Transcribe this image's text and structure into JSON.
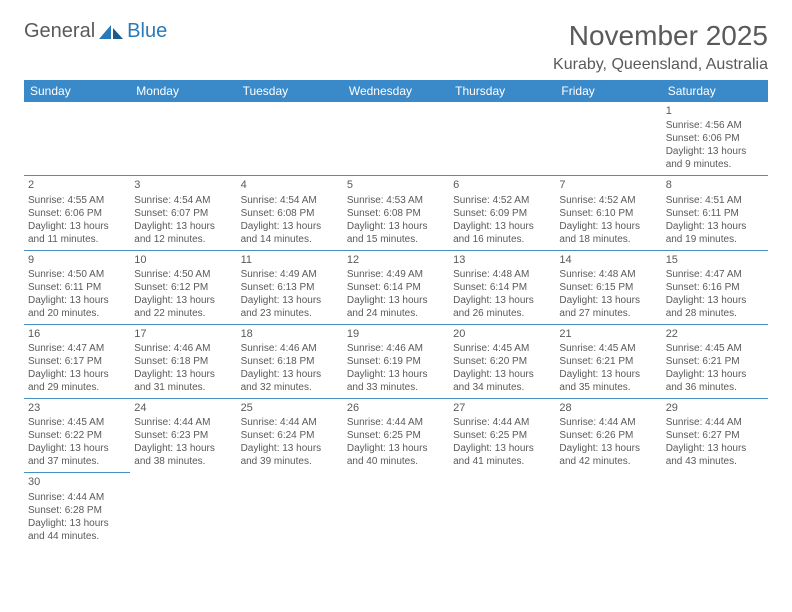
{
  "logo": {
    "text1": "General",
    "text2": "Blue"
  },
  "title": "November 2025",
  "location": "Kuraby, Queensland, Australia",
  "colors": {
    "header_bg": "#3a89c9",
    "header_text": "#ffffff",
    "cell_border": "#4a8fc4",
    "text": "#5a5a5a",
    "logo_blue": "#2a7ab9"
  },
  "weekdays": [
    "Sunday",
    "Monday",
    "Tuesday",
    "Wednesday",
    "Thursday",
    "Friday",
    "Saturday"
  ],
  "cells": [
    {
      "day": "",
      "sunrise": "",
      "sunset": "",
      "daylight": ""
    },
    {
      "day": "",
      "sunrise": "",
      "sunset": "",
      "daylight": ""
    },
    {
      "day": "",
      "sunrise": "",
      "sunset": "",
      "daylight": ""
    },
    {
      "day": "",
      "sunrise": "",
      "sunset": "",
      "daylight": ""
    },
    {
      "day": "",
      "sunrise": "",
      "sunset": "",
      "daylight": ""
    },
    {
      "day": "",
      "sunrise": "",
      "sunset": "",
      "daylight": ""
    },
    {
      "day": "1",
      "sunrise": "Sunrise: 4:56 AM",
      "sunset": "Sunset: 6:06 PM",
      "daylight": "Daylight: 13 hours and 9 minutes."
    },
    {
      "day": "2",
      "sunrise": "Sunrise: 4:55 AM",
      "sunset": "Sunset: 6:06 PM",
      "daylight": "Daylight: 13 hours and 11 minutes."
    },
    {
      "day": "3",
      "sunrise": "Sunrise: 4:54 AM",
      "sunset": "Sunset: 6:07 PM",
      "daylight": "Daylight: 13 hours and 12 minutes."
    },
    {
      "day": "4",
      "sunrise": "Sunrise: 4:54 AM",
      "sunset": "Sunset: 6:08 PM",
      "daylight": "Daylight: 13 hours and 14 minutes."
    },
    {
      "day": "5",
      "sunrise": "Sunrise: 4:53 AM",
      "sunset": "Sunset: 6:08 PM",
      "daylight": "Daylight: 13 hours and 15 minutes."
    },
    {
      "day": "6",
      "sunrise": "Sunrise: 4:52 AM",
      "sunset": "Sunset: 6:09 PM",
      "daylight": "Daylight: 13 hours and 16 minutes."
    },
    {
      "day": "7",
      "sunrise": "Sunrise: 4:52 AM",
      "sunset": "Sunset: 6:10 PM",
      "daylight": "Daylight: 13 hours and 18 minutes."
    },
    {
      "day": "8",
      "sunrise": "Sunrise: 4:51 AM",
      "sunset": "Sunset: 6:11 PM",
      "daylight": "Daylight: 13 hours and 19 minutes."
    },
    {
      "day": "9",
      "sunrise": "Sunrise: 4:50 AM",
      "sunset": "Sunset: 6:11 PM",
      "daylight": "Daylight: 13 hours and 20 minutes."
    },
    {
      "day": "10",
      "sunrise": "Sunrise: 4:50 AM",
      "sunset": "Sunset: 6:12 PM",
      "daylight": "Daylight: 13 hours and 22 minutes."
    },
    {
      "day": "11",
      "sunrise": "Sunrise: 4:49 AM",
      "sunset": "Sunset: 6:13 PM",
      "daylight": "Daylight: 13 hours and 23 minutes."
    },
    {
      "day": "12",
      "sunrise": "Sunrise: 4:49 AM",
      "sunset": "Sunset: 6:14 PM",
      "daylight": "Daylight: 13 hours and 24 minutes."
    },
    {
      "day": "13",
      "sunrise": "Sunrise: 4:48 AM",
      "sunset": "Sunset: 6:14 PM",
      "daylight": "Daylight: 13 hours and 26 minutes."
    },
    {
      "day": "14",
      "sunrise": "Sunrise: 4:48 AM",
      "sunset": "Sunset: 6:15 PM",
      "daylight": "Daylight: 13 hours and 27 minutes."
    },
    {
      "day": "15",
      "sunrise": "Sunrise: 4:47 AM",
      "sunset": "Sunset: 6:16 PM",
      "daylight": "Daylight: 13 hours and 28 minutes."
    },
    {
      "day": "16",
      "sunrise": "Sunrise: 4:47 AM",
      "sunset": "Sunset: 6:17 PM",
      "daylight": "Daylight: 13 hours and 29 minutes."
    },
    {
      "day": "17",
      "sunrise": "Sunrise: 4:46 AM",
      "sunset": "Sunset: 6:18 PM",
      "daylight": "Daylight: 13 hours and 31 minutes."
    },
    {
      "day": "18",
      "sunrise": "Sunrise: 4:46 AM",
      "sunset": "Sunset: 6:18 PM",
      "daylight": "Daylight: 13 hours and 32 minutes."
    },
    {
      "day": "19",
      "sunrise": "Sunrise: 4:46 AM",
      "sunset": "Sunset: 6:19 PM",
      "daylight": "Daylight: 13 hours and 33 minutes."
    },
    {
      "day": "20",
      "sunrise": "Sunrise: 4:45 AM",
      "sunset": "Sunset: 6:20 PM",
      "daylight": "Daylight: 13 hours and 34 minutes."
    },
    {
      "day": "21",
      "sunrise": "Sunrise: 4:45 AM",
      "sunset": "Sunset: 6:21 PM",
      "daylight": "Daylight: 13 hours and 35 minutes."
    },
    {
      "day": "22",
      "sunrise": "Sunrise: 4:45 AM",
      "sunset": "Sunset: 6:21 PM",
      "daylight": "Daylight: 13 hours and 36 minutes."
    },
    {
      "day": "23",
      "sunrise": "Sunrise: 4:45 AM",
      "sunset": "Sunset: 6:22 PM",
      "daylight": "Daylight: 13 hours and 37 minutes."
    },
    {
      "day": "24",
      "sunrise": "Sunrise: 4:44 AM",
      "sunset": "Sunset: 6:23 PM",
      "daylight": "Daylight: 13 hours and 38 minutes."
    },
    {
      "day": "25",
      "sunrise": "Sunrise: 4:44 AM",
      "sunset": "Sunset: 6:24 PM",
      "daylight": "Daylight: 13 hours and 39 minutes."
    },
    {
      "day": "26",
      "sunrise": "Sunrise: 4:44 AM",
      "sunset": "Sunset: 6:25 PM",
      "daylight": "Daylight: 13 hours and 40 minutes."
    },
    {
      "day": "27",
      "sunrise": "Sunrise: 4:44 AM",
      "sunset": "Sunset: 6:25 PM",
      "daylight": "Daylight: 13 hours and 41 minutes."
    },
    {
      "day": "28",
      "sunrise": "Sunrise: 4:44 AM",
      "sunset": "Sunset: 6:26 PM",
      "daylight": "Daylight: 13 hours and 42 minutes."
    },
    {
      "day": "29",
      "sunrise": "Sunrise: 4:44 AM",
      "sunset": "Sunset: 6:27 PM",
      "daylight": "Daylight: 13 hours and 43 minutes."
    },
    {
      "day": "30",
      "sunrise": "Sunrise: 4:44 AM",
      "sunset": "Sunset: 6:28 PM",
      "daylight": "Daylight: 13 hours and 44 minutes."
    },
    {
      "day": "",
      "sunrise": "",
      "sunset": "",
      "daylight": ""
    },
    {
      "day": "",
      "sunrise": "",
      "sunset": "",
      "daylight": ""
    },
    {
      "day": "",
      "sunrise": "",
      "sunset": "",
      "daylight": ""
    },
    {
      "day": "",
      "sunrise": "",
      "sunset": "",
      "daylight": ""
    },
    {
      "day": "",
      "sunrise": "",
      "sunset": "",
      "daylight": ""
    },
    {
      "day": "",
      "sunrise": "",
      "sunset": "",
      "daylight": ""
    }
  ]
}
